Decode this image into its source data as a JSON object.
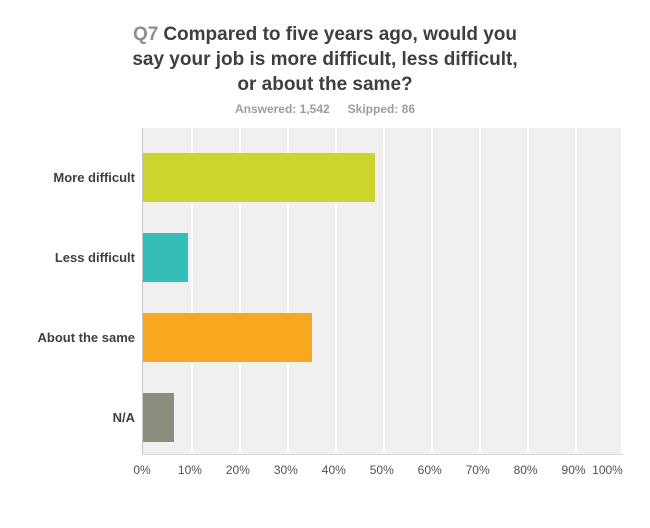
{
  "title": {
    "q_number": "Q7",
    "lines": [
      "Compared to five years ago, would you",
      "say your job is more difficult, less difficult,",
      "or about the same?"
    ],
    "full_text": "Q7 Compared to five years ago, would you say your job is more difficult, less difficult, or about the same?"
  },
  "subtitle": {
    "answered": "Answered: 1,542",
    "skipped": "Skipped: 86"
  },
  "chart_data": {
    "type": "bar",
    "orientation": "horizontal",
    "title": "Q7 Compared to five years ago, would you say your job is more difficult, less difficult, or about the same?",
    "categories": [
      "More difficult",
      "Less difficult",
      "About the same",
      "N/A"
    ],
    "values": [
      48.3,
      9.4,
      35.3,
      6.4
    ],
    "unit": "percent",
    "bar_colors": [
      "#cdd42c",
      "#35bdb8",
      "#f8a81e",
      "#8c8d7f"
    ],
    "x_tick_labels": [
      "0%",
      "10%",
      "20%",
      "30%",
      "40%",
      "50%",
      "60%",
      "70%",
      "80%",
      "90%",
      "100%"
    ],
    "xlim": [
      0,
      100
    ],
    "grid": true,
    "legend": "none",
    "plot_background": "#f0f0f0",
    "gridline_color": "#ffffff"
  }
}
